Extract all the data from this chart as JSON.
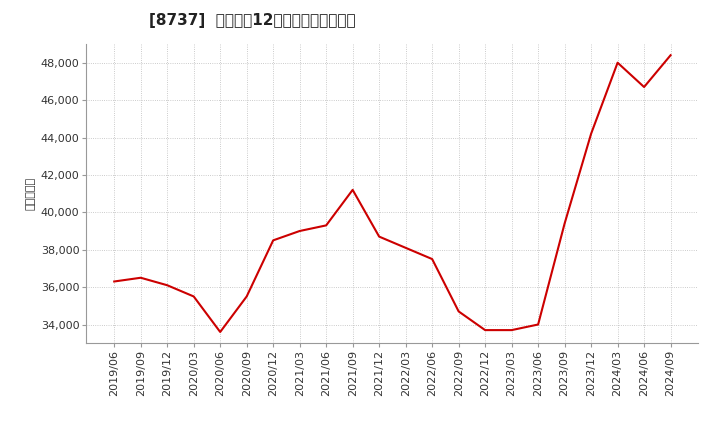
{
  "title": "[8737]  売上高の12か月移動合計の推移",
  "ylabel": "（百万円）",
  "line_color": "#cc0000",
  "background_color": "#ffffff",
  "plot_bg_color": "#ffffff",
  "grid_color": "#bbbbbb",
  "dates": [
    "2019/06",
    "2019/09",
    "2019/12",
    "2020/03",
    "2020/06",
    "2020/09",
    "2020/12",
    "2021/03",
    "2021/06",
    "2021/09",
    "2021/12",
    "2022/03",
    "2022/06",
    "2022/09",
    "2022/12",
    "2023/03",
    "2023/06",
    "2023/09",
    "2023/12",
    "2024/03",
    "2024/06",
    "2024/09"
  ],
  "values": [
    36300,
    36500,
    36100,
    35500,
    33600,
    35500,
    38500,
    39000,
    39300,
    41200,
    38700,
    38100,
    37500,
    34700,
    33700,
    33700,
    34000,
    39400,
    44200,
    48000,
    46700,
    48400
  ],
  "ylim": [
    33000,
    49000
  ],
  "yticks": [
    34000,
    36000,
    38000,
    40000,
    42000,
    44000,
    46000,
    48000
  ],
  "title_fontsize": 11,
  "axis_fontsize": 8,
  "ylabel_fontsize": 8,
  "line_width": 1.5
}
